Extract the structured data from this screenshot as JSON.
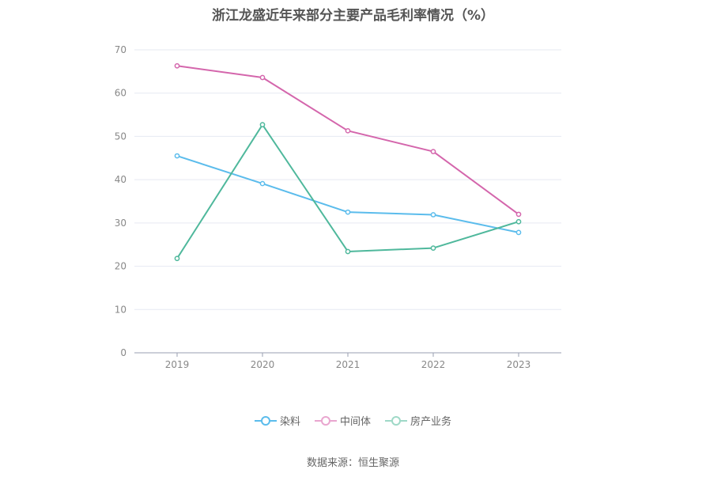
{
  "chart_data": {
    "type": "line",
    "title": "浙江龙盛近年来部分主要产品毛利率情况（%）",
    "categories": [
      "2019",
      "2020",
      "2021",
      "2022",
      "2023"
    ],
    "series": [
      {
        "name": "染料",
        "color": "#5bbcec",
        "values": [
          45.5,
          39.1,
          32.5,
          31.9,
          27.8
        ]
      },
      {
        "name": "中间体",
        "color": "#d466ac",
        "values": [
          66.3,
          63.6,
          51.3,
          46.5,
          32.0
        ]
      },
      {
        "name": "房产业务",
        "color": "#4fb89c",
        "values": [
          21.8,
          52.7,
          23.4,
          24.2,
          30.3
        ]
      }
    ],
    "ylim": [
      0,
      70
    ],
    "yticks": [
      0,
      10,
      20,
      30,
      40,
      50,
      60,
      70
    ],
    "grid": true,
    "legend_position": "bottom",
    "source": "数据来源：恒生聚源"
  }
}
